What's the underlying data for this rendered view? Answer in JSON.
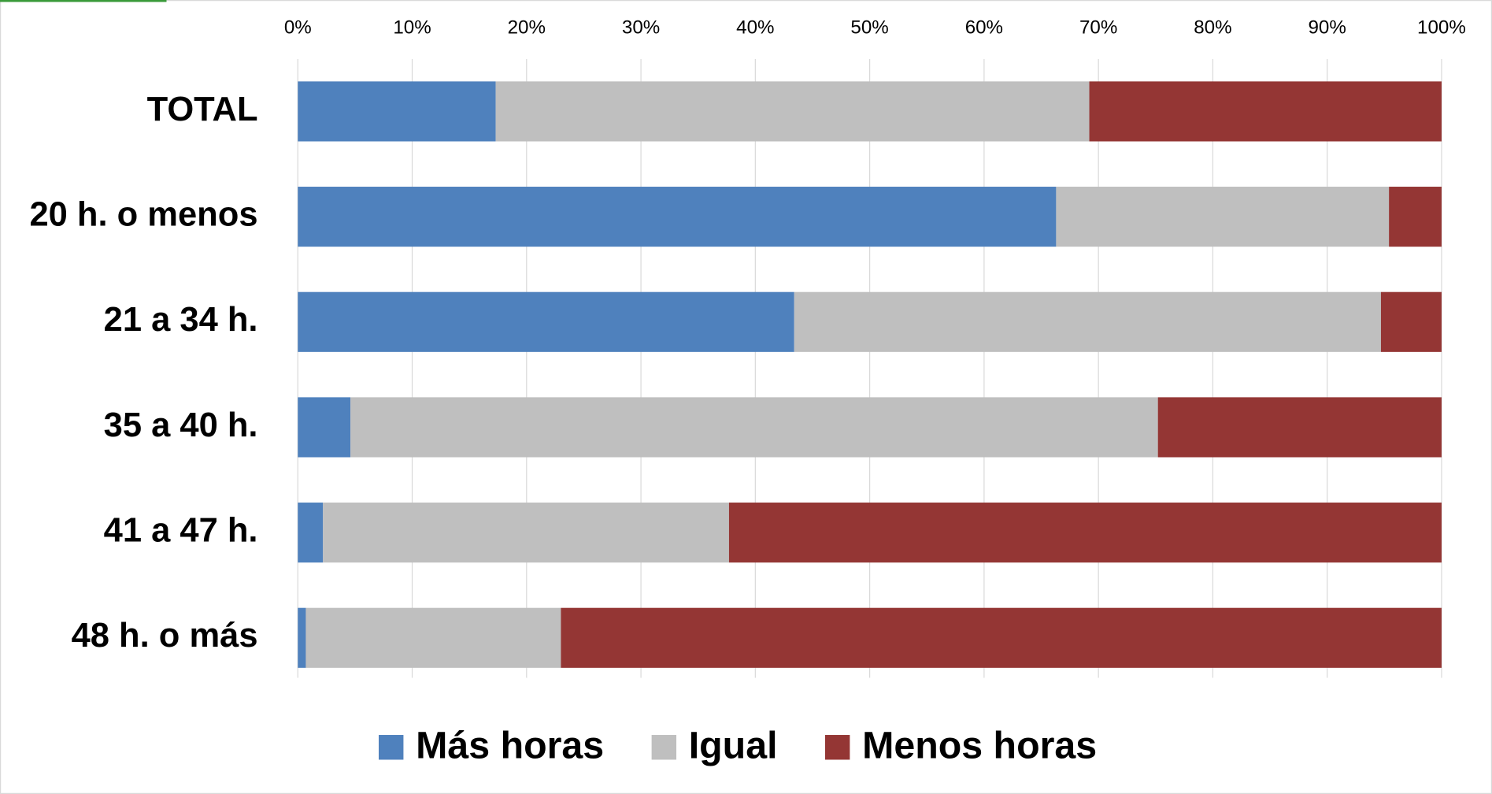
{
  "chart_data": {
    "type": "stacked-bar-horizontal",
    "categories": [
      "TOTAL",
      "20 h. o menos",
      "21 a 34 h.",
      "35 a 40 h.",
      "41 a 47 h.",
      "48 h. o más"
    ],
    "series": [
      {
        "name": "Más horas",
        "color": "#4f81bd",
        "values": [
          17.3,
          66.3,
          43.4,
          4.6,
          2.2,
          0.7
        ]
      },
      {
        "name": "Igual",
        "color": "#bfbfbf",
        "values": [
          51.9,
          29.1,
          51.3,
          70.6,
          35.5,
          22.3
        ]
      },
      {
        "name": "Menos horas",
        "color": "#943634",
        "values": [
          30.8,
          4.6,
          5.3,
          24.8,
          62.3,
          77.0
        ]
      }
    ],
    "xlim": [
      0,
      100
    ],
    "xticks": [
      {
        "value": 0,
        "label": "0%"
      },
      {
        "value": 10,
        "label": "10%"
      },
      {
        "value": 20,
        "label": "20%"
      },
      {
        "value": 30,
        "label": "30%"
      },
      {
        "value": 40,
        "label": "40%"
      },
      {
        "value": 50,
        "label": "50%"
      },
      {
        "value": 60,
        "label": "60%"
      },
      {
        "value": 70,
        "label": "70%"
      },
      {
        "value": 80,
        "label": "80%"
      },
      {
        "value": 90,
        "label": "90%"
      },
      {
        "value": 100,
        "label": "100%"
      }
    ],
    "grid": true,
    "legend": "bottom"
  }
}
